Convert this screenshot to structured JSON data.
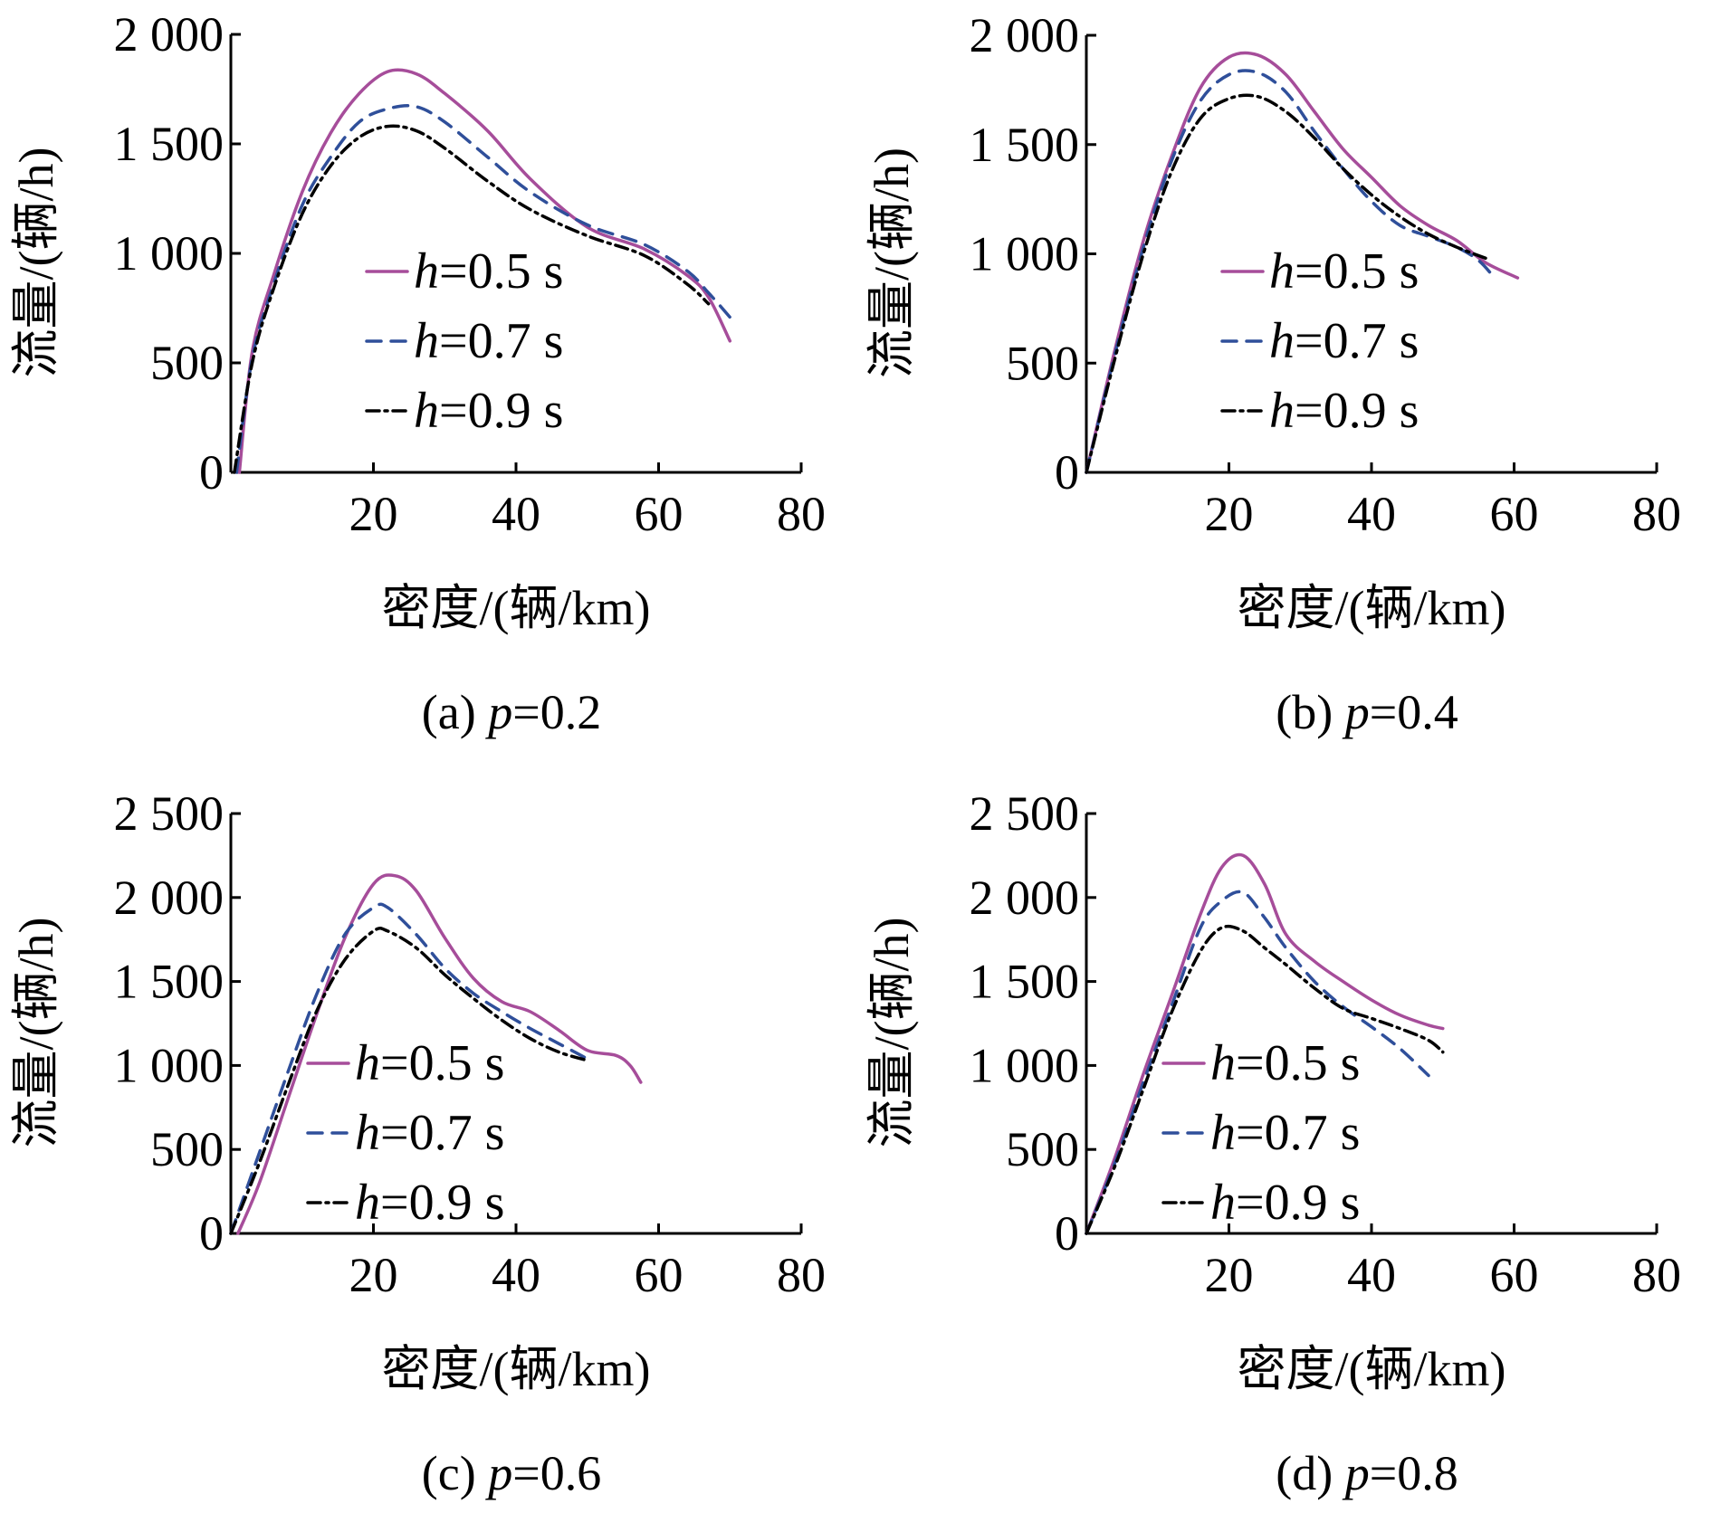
{
  "chart_data": [
    {
      "type": "line",
      "caption": "(a) p=0.2",
      "caption_parts": {
        "pre": "(a) ",
        "var": "p",
        "post": "=0.2"
      },
      "xlabel": "密度/(辆/km)",
      "ylabel": "流量/(辆/h)",
      "xlim": [
        0,
        80
      ],
      "ylim": [
        0,
        2000
      ],
      "xticks": [
        20,
        40,
        60,
        80
      ],
      "xtick_labels": [
        "20",
        "40",
        "60",
        "80"
      ],
      "yticks": [
        0,
        500,
        1000,
        1500,
        2000
      ],
      "ytick_labels": [
        "0",
        "500",
        "1 000",
        "1 500",
        "2 000"
      ],
      "legend": "center",
      "series": [
        {
          "name": "h=0.5 s",
          "name_parts": {
            "var": "h",
            "rest": "=0.5 s"
          },
          "color": "#a64d9a",
          "dash": "solid",
          "x": [
            1.2,
            3,
            6,
            10,
            14,
            18,
            22,
            26,
            30,
            36,
            42,
            50,
            58,
            64,
            67,
            70
          ],
          "y": [
            0,
            550,
            900,
            1280,
            1550,
            1730,
            1830,
            1820,
            1730,
            1560,
            1340,
            1120,
            1020,
            900,
            800,
            600
          ]
        },
        {
          "name": "h=0.7 s",
          "name_parts": {
            "var": "h",
            "rest": "=0.7 s"
          },
          "color": "#2f4f9a",
          "dash": "dashed",
          "x": [
            0.8,
            3,
            6,
            10,
            14,
            18,
            22,
            26,
            30,
            36,
            42,
            50,
            58,
            64,
            67,
            70.5
          ],
          "y": [
            0,
            520,
            860,
            1220,
            1440,
            1600,
            1660,
            1670,
            1600,
            1440,
            1280,
            1130,
            1040,
            920,
            820,
            690
          ]
        },
        {
          "name": "h=0.9 s",
          "name_parts": {
            "var": "h",
            "rest": "=0.9 s"
          },
          "color": "#000000",
          "dash": "dashdot",
          "x": [
            0.5,
            3,
            6,
            10,
            14,
            18,
            22,
            26,
            30,
            36,
            42,
            50,
            58,
            64,
            67
          ],
          "y": [
            0,
            500,
            840,
            1180,
            1400,
            1530,
            1580,
            1560,
            1480,
            1330,
            1200,
            1080,
            990,
            860,
            770
          ]
        }
      ]
    },
    {
      "type": "line",
      "caption": "(b) p=0.4",
      "caption_parts": {
        "pre": "(b) ",
        "var": "p",
        "post": "=0.4"
      },
      "xlabel": "密度/(辆/km)",
      "ylabel": "流量/(辆/h)",
      "xlim": [
        0,
        80
      ],
      "ylim": [
        0,
        2000
      ],
      "xticks": [
        20,
        40,
        60,
        80
      ],
      "xtick_labels": [
        "20",
        "40",
        "60",
        "80"
      ],
      "yticks": [
        0,
        500,
        1000,
        1500,
        2000
      ],
      "ytick_labels": [
        "0",
        "500",
        "1 000",
        "1 500",
        "2 000"
      ],
      "legend": "center",
      "series": [
        {
          "name": "h=0.5 s",
          "name_parts": {
            "var": "h",
            "rest": "=0.5 s"
          },
          "color": "#a64d9a",
          "dash": "solid",
          "x": [
            0,
            4,
            8,
            12,
            16,
            20,
            24,
            28,
            32,
            36,
            40,
            44,
            48,
            52,
            56,
            60.5
          ],
          "y": [
            0,
            560,
            1060,
            1450,
            1760,
            1900,
            1910,
            1820,
            1650,
            1480,
            1350,
            1220,
            1130,
            1060,
            960,
            890
          ]
        },
        {
          "name": "h=0.7 s",
          "name_parts": {
            "var": "h",
            "rest": "=0.7 s"
          },
          "color": "#2f4f9a",
          "dash": "dashed",
          "x": [
            0,
            4,
            8,
            12,
            16,
            20,
            24,
            28,
            32,
            36,
            40,
            44,
            48,
            52,
            55,
            57
          ],
          "y": [
            0,
            540,
            1030,
            1430,
            1700,
            1820,
            1830,
            1740,
            1560,
            1390,
            1240,
            1130,
            1080,
            1030,
            970,
            900
          ]
        },
        {
          "name": "h=0.9 s",
          "name_parts": {
            "var": "h",
            "rest": "=0.9 s"
          },
          "color": "#000000",
          "dash": "dashdot",
          "x": [
            0,
            4,
            8,
            12,
            16,
            20,
            24,
            28,
            32,
            36,
            40,
            44,
            48,
            52,
            56
          ],
          "y": [
            0,
            520,
            1000,
            1380,
            1620,
            1710,
            1720,
            1650,
            1530,
            1390,
            1270,
            1170,
            1090,
            1030,
            980
          ]
        }
      ]
    },
    {
      "type": "line",
      "caption": "(c) p=0.6",
      "caption_parts": {
        "pre": "(c) ",
        "var": "p",
        "post": "=0.6"
      },
      "xlabel": "密度/(辆/km)",
      "ylabel": "流量/(辆/h)",
      "xlim": [
        0,
        80
      ],
      "ylim": [
        0,
        2500
      ],
      "xticks": [
        20,
        40,
        60,
        80
      ],
      "xtick_labels": [
        "20",
        "40",
        "60",
        "80"
      ],
      "yticks": [
        0,
        500,
        1000,
        1500,
        2000,
        2500
      ],
      "ytick_labels": [
        "0",
        "500",
        "1 000",
        "1 500",
        "2 000",
        "2 500"
      ],
      "legend": "lower-left",
      "series": [
        {
          "name": "h=0.5 s",
          "name_parts": {
            "var": "h",
            "rest": "=0.5 s"
          },
          "color": "#a64d9a",
          "dash": "solid",
          "x": [
            1,
            4,
            8,
            12,
            16,
            20,
            23,
            26,
            30,
            34,
            38,
            42,
            46,
            50,
            54,
            56,
            57.5
          ],
          "y": [
            0,
            300,
            800,
            1300,
            1760,
            2080,
            2130,
            2040,
            1760,
            1520,
            1380,
            1320,
            1210,
            1090,
            1060,
            1000,
            900
          ]
        },
        {
          "name": "h=0.7 s",
          "name_parts": {
            "var": "h",
            "rest": "=0.7 s"
          },
          "color": "#2f4f9a",
          "dash": "dashed",
          "x": [
            0,
            4,
            8,
            12,
            16,
            20,
            22,
            26,
            30,
            34,
            38,
            42,
            46,
            50
          ],
          "y": [
            0,
            480,
            960,
            1420,
            1780,
            1940,
            1940,
            1780,
            1580,
            1430,
            1320,
            1220,
            1130,
            1040
          ]
        },
        {
          "name": "h=0.9 s",
          "name_parts": {
            "var": "h",
            "rest": "=0.9 s"
          },
          "color": "#000000",
          "dash": "dashdot",
          "x": [
            0,
            4,
            8,
            12,
            16,
            20,
            22,
            26,
            30,
            34,
            38,
            42,
            46,
            50
          ],
          "y": [
            0,
            420,
            880,
            1320,
            1630,
            1800,
            1800,
            1700,
            1540,
            1400,
            1270,
            1160,
            1080,
            1030
          ]
        }
      ]
    },
    {
      "type": "line",
      "caption": "(d) p=0.8",
      "caption_parts": {
        "pre": "(d) ",
        "var": "p",
        "post": "=0.8"
      },
      "xlabel": "密度/(辆/km)",
      "ylabel": "流量/(辆/h)",
      "xlim": [
        0,
        80
      ],
      "ylim": [
        0,
        2500
      ],
      "xticks": [
        20,
        40,
        60,
        80
      ],
      "xtick_labels": [
        "20",
        "40",
        "60",
        "80"
      ],
      "yticks": [
        0,
        500,
        1000,
        1500,
        2000,
        2500
      ],
      "ytick_labels": [
        "0",
        "500",
        "1 000",
        "1 500",
        "2 000",
        "2 500"
      ],
      "legend": "lower-left",
      "series": [
        {
          "name": "h=0.5 s",
          "name_parts": {
            "var": "h",
            "rest": "=0.5 s"
          },
          "color": "#a64d9a",
          "dash": "solid",
          "x": [
            0,
            4,
            8,
            12,
            16,
            19,
            22,
            25,
            28,
            32,
            36,
            40,
            44,
            48,
            50
          ],
          "y": [
            0,
            450,
            950,
            1420,
            1900,
            2180,
            2250,
            2080,
            1780,
            1620,
            1500,
            1390,
            1300,
            1240,
            1220
          ]
        },
        {
          "name": "h=0.7 s",
          "name_parts": {
            "var": "h",
            "rest": "=0.7 s"
          },
          "color": "#2f4f9a",
          "dash": "dashed",
          "x": [
            0,
            4,
            8,
            12,
            16,
            19,
            22,
            25,
            28,
            32,
            36,
            40,
            44,
            48
          ],
          "y": [
            0,
            420,
            900,
            1360,
            1820,
            1980,
            2030,
            1880,
            1700,
            1500,
            1350,
            1230,
            1100,
            940
          ]
        },
        {
          "name": "h=0.9 s",
          "name_parts": {
            "var": "h",
            "rest": "=0.9 s"
          },
          "color": "#000000",
          "dash": "dashdot",
          "x": [
            0,
            4,
            8,
            12,
            16,
            19,
            22,
            25,
            28,
            32,
            36,
            40,
            44,
            48,
            50
          ],
          "y": [
            0,
            400,
            860,
            1320,
            1680,
            1820,
            1800,
            1700,
            1600,
            1460,
            1340,
            1280,
            1220,
            1150,
            1080
          ]
        }
      ]
    }
  ]
}
